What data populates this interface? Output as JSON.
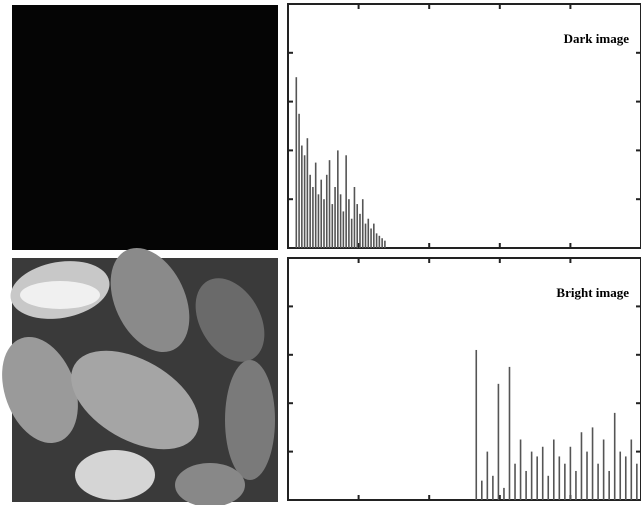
{
  "chart_data": [
    {
      "type": "bar",
      "title": "Dark image",
      "color": "#555555",
      "xlim": [
        0,
        255
      ],
      "ylim": [
        0,
        100
      ],
      "x": [
        6,
        8,
        10,
        12,
        14,
        16,
        18,
        20,
        22,
        24,
        26,
        28,
        30,
        32,
        34,
        36,
        38,
        40,
        42,
        44,
        46,
        48,
        50,
        52,
        54,
        56,
        58,
        60,
        62,
        64,
        66,
        68,
        70
      ],
      "values": [
        70,
        55,
        42,
        38,
        45,
        30,
        25,
        35,
        22,
        28,
        20,
        30,
        36,
        18,
        25,
        40,
        22,
        15,
        38,
        20,
        12,
        25,
        18,
        14,
        20,
        10,
        12,
        8,
        10,
        6,
        5,
        4,
        3
      ]
    },
    {
      "type": "bar",
      "title": "Bright image",
      "color": "#555555",
      "xlim": [
        0,
        255
      ],
      "ylim": [
        0,
        100
      ],
      "x": [
        136,
        140,
        144,
        148,
        152,
        156,
        160,
        164,
        168,
        172,
        176,
        180,
        184,
        188,
        192,
        196,
        200,
        204,
        208,
        212,
        216,
        220,
        224,
        228,
        232,
        236,
        240,
        244,
        248,
        252
      ],
      "values": [
        62,
        8,
        20,
        10,
        48,
        5,
        55,
        15,
        25,
        12,
        20,
        18,
        22,
        10,
        25,
        18,
        15,
        22,
        12,
        28,
        20,
        30,
        15,
        25,
        12,
        36,
        20,
        18,
        25,
        15
      ]
    }
  ]
}
